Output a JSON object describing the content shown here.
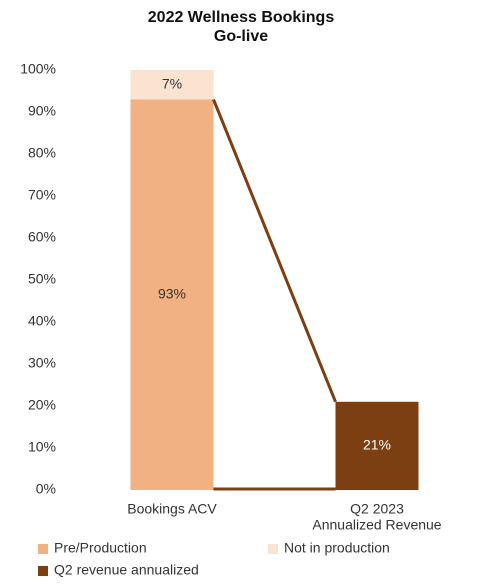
{
  "chart_data": {
    "type": "stacked_bar",
    "title": [
      "2022 Wellness Bookings",
      "Go-live"
    ],
    "categories": [
      [
        "Bookings ACV"
      ],
      [
        "Q2 2023",
        "Annualized Revenue"
      ]
    ],
    "series": [
      {
        "name": "Pre/Production",
        "color": "#f2b183",
        "values": [
          93,
          null
        ],
        "value_labels": [
          "93%",
          null
        ]
      },
      {
        "name": "Not in production",
        "color": "#fbe3d1",
        "values": [
          7,
          null
        ],
        "value_labels": [
          "7%",
          null
        ]
      },
      {
        "name": "Q2 revenue annualized",
        "color": "#7b3f12",
        "values": [
          null,
          21
        ],
        "value_labels": [
          null,
          "21%"
        ]
      }
    ],
    "ylim": [
      0,
      100
    ],
    "yticks": [
      {
        "value": 0,
        "label": "0%"
      },
      {
        "value": 10,
        "label": "10%"
      },
      {
        "value": 20,
        "label": "20%"
      },
      {
        "value": 30,
        "label": "30%"
      },
      {
        "value": 40,
        "label": "40%"
      },
      {
        "value": 50,
        "label": "50%"
      },
      {
        "value": 60,
        "label": "60%"
      },
      {
        "value": 70,
        "label": "70%"
      },
      {
        "value": 80,
        "label": "80%"
      },
      {
        "value": 90,
        "label": "90%"
      },
      {
        "value": 100,
        "label": "100%"
      }
    ],
    "legend": "bottom"
  }
}
